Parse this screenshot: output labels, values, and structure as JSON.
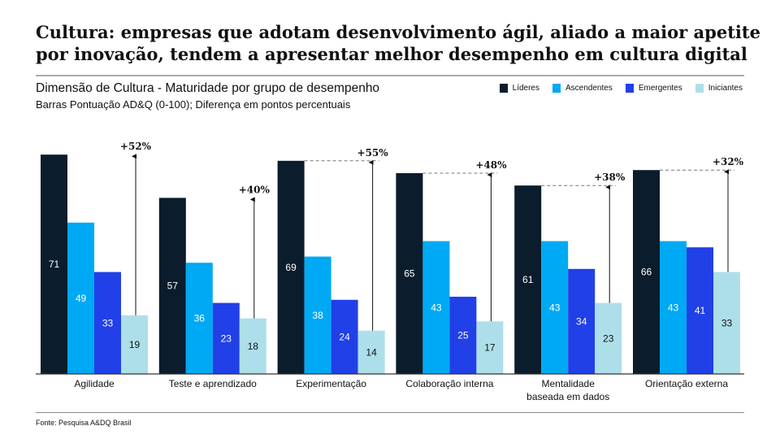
{
  "title": "Cultura: empresas que adotam desenvolvimento ágil, aliado a maior apetite por inovação, tendem a apresentar melhor desempenho em cultura digital",
  "source": "Fonte: Pesquisa A&DQ Brasil",
  "chart_data": {
    "type": "bar",
    "title": "Dimensão de Cultura - Maturidade por grupo de desempenho",
    "subtitle": "Barras Pontuação AD&Q (0-100); Diferença em pontos percentuais",
    "categories": [
      "Agilidade",
      "Teste e aprendizado",
      "Experimentação",
      "Colaboração interna",
      "Mentalidade baseada em dados",
      "Orientação externa"
    ],
    "category_lines": [
      [
        "Agilidade"
      ],
      [
        "Teste e aprendizado"
      ],
      [
        "Experimentação"
      ],
      [
        "Colaboração interna"
      ],
      [
        "Mentalidade",
        "baseada em dados"
      ],
      [
        "Orientação externa"
      ]
    ],
    "series": [
      {
        "name": "Líderes",
        "color": "#0b1c2c",
        "values": [
          71,
          57,
          69,
          65,
          61,
          66
        ]
      },
      {
        "name": "Ascendentes",
        "color": "#00a9f4",
        "values": [
          49,
          36,
          38,
          43,
          43,
          43
        ]
      },
      {
        "name": "Emergentes",
        "color": "#2140e8",
        "values": [
          33,
          23,
          24,
          25,
          34,
          41
        ]
      },
      {
        "name": "Iniciantes",
        "color": "#addfea",
        "values": [
          19,
          18,
          14,
          17,
          23,
          33
        ]
      }
    ],
    "differences": [
      "+52%",
      "+40%",
      "+55%",
      "+48%",
      "+38%",
      "+32%"
    ],
    "ylim": [
      0,
      100
    ],
    "legend": "top-right",
    "grid": false
  }
}
